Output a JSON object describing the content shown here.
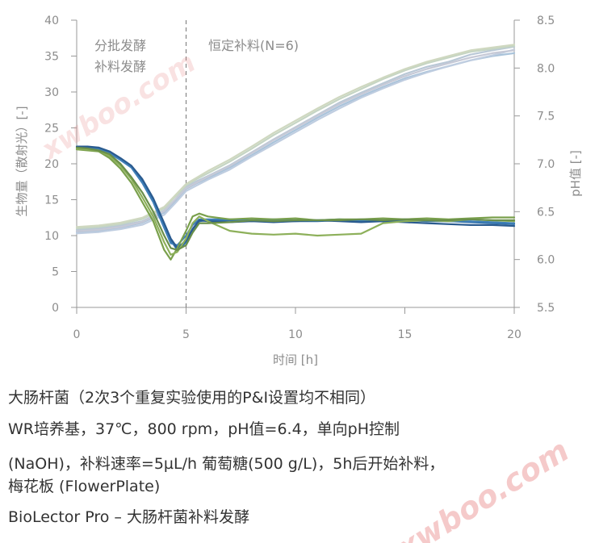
{
  "chart_data": {
    "type": "line",
    "xlabel": "时间 [h]",
    "ylabel": "生物量（散射光）[-]",
    "y2label": "pH值 [-]",
    "xlim": [
      0,
      20
    ],
    "ylim": [
      0,
      40
    ],
    "y2lim": [
      5.5,
      8.5
    ],
    "xticks": [
      "0",
      "5",
      "10",
      "15",
      "20"
    ],
    "yticks": [
      "0",
      "5",
      "10",
      "15",
      "20",
      "25",
      "30",
      "35",
      "40"
    ],
    "y2ticks": [
      "5.5",
      "6.0",
      "6.5",
      "7.0",
      "7.5",
      "8.0",
      "8.5"
    ],
    "annotations": {
      "left": [
        "分批发酵",
        "补料发酵"
      ],
      "right": "恒定补料(N=6)",
      "divider_x": 5
    },
    "grid": false,
    "series": [
      {
        "axis": "y",
        "group": "biomass",
        "color": "#b9c8d6",
        "x": [
          0,
          1,
          2,
          3,
          4,
          4.5,
          5,
          5.5,
          6,
          7,
          8,
          9,
          10,
          11,
          12,
          13,
          14,
          15,
          16,
          17,
          18,
          19,
          20
        ],
        "y": [
          10.8,
          11,
          11.4,
          12,
          13.5,
          15,
          16.8,
          17.6,
          18.3,
          19.8,
          21.6,
          23.4,
          25.1,
          26.8,
          28.5,
          29.9,
          31.2,
          32.5,
          33.5,
          34.2,
          35.2,
          35.8,
          36.3
        ]
      },
      {
        "axis": "y",
        "group": "biomass",
        "color": "#a9c3da",
        "x": [
          0,
          1,
          2,
          3,
          4,
          4.5,
          5,
          5.5,
          6,
          7,
          8,
          9,
          10,
          11,
          12,
          13,
          14,
          15,
          16,
          17,
          18,
          19,
          20
        ],
        "y": [
          10.5,
          10.7,
          11.1,
          11.8,
          13.2,
          14.8,
          16.5,
          17.3,
          18,
          19.5,
          21.2,
          23,
          24.7,
          26.4,
          28,
          29.4,
          30.7,
          31.9,
          32.8,
          33.6,
          34.4,
          35,
          35.4
        ]
      },
      {
        "axis": "y",
        "group": "biomass",
        "color": "#c5d5c4",
        "x": [
          0,
          1,
          2,
          3,
          4,
          4.5,
          5,
          5.5,
          6,
          7,
          8,
          9,
          10,
          11,
          12,
          13,
          14,
          15,
          16,
          17,
          18,
          19,
          20
        ],
        "y": [
          11,
          11.2,
          11.6,
          12.3,
          13.8,
          15.4,
          17,
          17.9,
          18.7,
          20.3,
          22.1,
          24,
          25.7,
          27.4,
          29,
          30.4,
          31.8,
          33,
          34,
          34.8,
          35.6,
          36,
          36.4
        ]
      },
      {
        "axis": "y",
        "group": "biomass",
        "color": "#bfcde0",
        "x": [
          0,
          1,
          2,
          3,
          4,
          4.5,
          5,
          5.5,
          6,
          7,
          8,
          9,
          10,
          11,
          12,
          13,
          14,
          15,
          16,
          17,
          18,
          19,
          20
        ],
        "y": [
          10.3,
          10.5,
          10.9,
          11.5,
          12.9,
          14.5,
          16.2,
          17,
          17.8,
          19.2,
          21,
          22.7,
          24.4,
          26.1,
          27.7,
          29.2,
          30.5,
          31.7,
          32.7,
          33.6,
          34.4,
          35.1,
          35.9
        ]
      },
      {
        "axis": "y",
        "group": "biomass",
        "color": "#cfd8c0",
        "x": [
          0,
          1,
          2,
          3,
          4,
          4.5,
          5,
          5.5,
          6,
          7,
          8,
          9,
          10,
          11,
          12,
          13,
          14,
          15,
          16,
          17,
          18,
          19,
          20
        ],
        "y": [
          11.2,
          11.4,
          11.8,
          12.5,
          14,
          15.6,
          17.2,
          18.1,
          19,
          20.6,
          22.4,
          24.3,
          26,
          27.7,
          29.3,
          30.7,
          32,
          33.2,
          34.2,
          35,
          35.8,
          36.2,
          36.6
        ]
      },
      {
        "axis": "y",
        "group": "biomass",
        "color": "#c6c9d6",
        "x": [
          0,
          1,
          2,
          3,
          4,
          4.5,
          5,
          5.5,
          6,
          7,
          8,
          9,
          10,
          11,
          12,
          13,
          14,
          15,
          16,
          17,
          18,
          19,
          20
        ],
        "y": [
          10.6,
          10.8,
          11.2,
          11.9,
          13.4,
          15,
          16.6,
          17.4,
          18.2,
          19.7,
          21.5,
          23.3,
          25,
          26.7,
          28.3,
          29.7,
          31,
          32.2,
          33.2,
          34,
          34.8,
          35.4,
          35.8
        ]
      },
      {
        "axis": "y2",
        "group": "pH",
        "color": "#2f6fa8",
        "x": [
          0,
          0.5,
          1,
          1.5,
          2,
          2.5,
          3,
          3.5,
          4,
          4.3,
          4.6,
          5,
          5.3,
          5.6,
          6,
          7,
          8,
          9,
          10,
          11,
          12,
          13,
          14,
          15,
          16,
          17,
          18,
          19,
          20
        ],
        "y": [
          7.17,
          7.17,
          7.16,
          7.12,
          7.05,
          6.97,
          6.82,
          6.62,
          6.35,
          6.2,
          6.1,
          6.18,
          6.3,
          6.4,
          6.41,
          6.41,
          6.4,
          6.41,
          6.4,
          6.4,
          6.41,
          6.4,
          6.4,
          6.41,
          6.4,
          6.4,
          6.39,
          6.38,
          6.37
        ]
      },
      {
        "axis": "y2",
        "group": "pH",
        "color": "#3f7fb8",
        "x": [
          0,
          0.5,
          1,
          1.5,
          2,
          2.5,
          3,
          3.5,
          4,
          4.3,
          4.6,
          5,
          5.3,
          5.6,
          6,
          7,
          8,
          9,
          10,
          11,
          12,
          13,
          14,
          15,
          16,
          17,
          18,
          19,
          20
        ],
        "y": [
          7.16,
          7.16,
          7.15,
          7.11,
          7.04,
          6.96,
          6.8,
          6.6,
          6.33,
          6.17,
          6.15,
          6.25,
          6.36,
          6.42,
          6.42,
          6.42,
          6.41,
          6.42,
          6.41,
          6.41,
          6.42,
          6.41,
          6.41,
          6.42,
          6.41,
          6.4,
          6.4,
          6.39,
          6.38
        ]
      },
      {
        "axis": "y2",
        "group": "pH",
        "color": "#2a5b8f",
        "x": [
          0,
          0.5,
          1,
          1.5,
          2,
          2.5,
          3,
          3.5,
          4,
          4.3,
          4.6,
          5,
          5.3,
          5.6,
          6,
          7,
          8,
          9,
          10,
          11,
          12,
          13,
          14,
          15,
          16,
          17,
          18,
          19,
          20
        ],
        "y": [
          7.18,
          7.18,
          7.17,
          7.13,
          7.06,
          6.98,
          6.84,
          6.64,
          6.38,
          6.22,
          6.12,
          6.2,
          6.32,
          6.41,
          6.4,
          6.39,
          6.4,
          6.39,
          6.4,
          6.41,
          6.4,
          6.39,
          6.4,
          6.39,
          6.38,
          6.37,
          6.36,
          6.36,
          6.35
        ]
      },
      {
        "axis": "y2",
        "group": "pH",
        "color": "#7aa04c",
        "x": [
          0,
          0.5,
          1,
          1.5,
          2,
          2.5,
          3,
          3.5,
          4,
          4.3,
          4.6,
          5,
          5.3,
          5.6,
          6,
          7,
          8,
          9,
          10,
          11,
          12,
          13,
          14,
          15,
          16,
          17,
          18,
          19,
          20
        ],
        "y": [
          7.15,
          7.14,
          7.13,
          7.06,
          6.95,
          6.8,
          6.6,
          6.4,
          6.1,
          6.0,
          6.12,
          6.3,
          6.45,
          6.48,
          6.45,
          6.42,
          6.43,
          6.42,
          6.43,
          6.41,
          6.42,
          6.42,
          6.43,
          6.42,
          6.43,
          6.42,
          6.43,
          6.44,
          6.44
        ]
      },
      {
        "axis": "y2",
        "group": "pH",
        "color": "#8db05a",
        "x": [
          0,
          0.5,
          1,
          1.5,
          2,
          2.5,
          3,
          3.5,
          4,
          4.3,
          4.6,
          5,
          5.3,
          5.6,
          6,
          7,
          8,
          9,
          10,
          11,
          12,
          13,
          14,
          15,
          16,
          17,
          18,
          19,
          20
        ],
        "y": [
          7.16,
          7.15,
          7.14,
          7.08,
          6.98,
          6.84,
          6.65,
          6.45,
          6.18,
          6.05,
          6.08,
          6.22,
          6.38,
          6.45,
          6.4,
          6.3,
          6.27,
          6.26,
          6.27,
          6.25,
          6.26,
          6.27,
          6.38,
          6.4,
          6.41,
          6.4,
          6.42,
          6.41,
          6.4
        ]
      },
      {
        "axis": "y2",
        "group": "pH",
        "color": "#6a8f4a",
        "x": [
          0,
          0.5,
          1,
          1.5,
          2,
          2.5,
          3,
          3.5,
          4,
          4.3,
          4.6,
          5,
          5.3,
          5.6,
          6,
          7,
          8,
          9,
          10,
          11,
          12,
          13,
          14,
          15,
          16,
          17,
          18,
          19,
          20
        ],
        "y": [
          7.17,
          7.16,
          7.14,
          7.1,
          7.0,
          6.86,
          6.7,
          6.5,
          6.25,
          6.12,
          6.1,
          6.15,
          6.28,
          6.38,
          6.38,
          6.39,
          6.41,
          6.4,
          6.41,
          6.41,
          6.41,
          6.42,
          6.41,
          6.42,
          6.41,
          6.41,
          6.42,
          6.41,
          6.41
        ]
      }
    ]
  },
  "caption": {
    "line1": "大肠杆菌（2次3个重复实验使用的P&I设置均不相同）",
    "line2": "WR培养基，37℃，800 rpm，pH值=6.4，单向pH控制",
    "line3": "(NaOH)，补料速率=5µL/h 葡萄糖(500 g/L)，5h后开始补料，",
    "line4": "梅花板 (FlowerPlate)",
    "line5": "BioLector Pro – 大肠杆菌补料发酵"
  },
  "watermark": {
    "text": "xwboo.com",
    "color": "#e88a8a"
  }
}
